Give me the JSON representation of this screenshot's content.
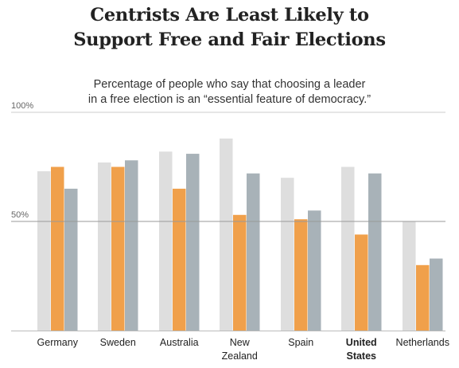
{
  "title_lines": [
    "Centrists Are Least Likely to",
    "Support Free and Fair Elections"
  ],
  "subtitle_lines": [
    "Percentage of people who say that choosing a leader",
    "in a free election is an “essential feature of democracy.”"
  ],
  "colors": {
    "series_1": "#dedede",
    "series_2": "#f0a04b",
    "series_3": "#a8b2b8",
    "gridline": "#cccccc",
    "midline": "#999999",
    "baseline": "#bbbbbb"
  },
  "chart_data": {
    "type": "bar",
    "title": "Centrists Are Least Likely to Support Free and Fair Elections",
    "subtitle": "Percentage of people who say that choosing a leader in a free election is an “essential feature of democracy.”",
    "categories": [
      {
        "lines": [
          "Germany"
        ],
        "bold": false
      },
      {
        "lines": [
          "Sweden"
        ],
        "bold": false
      },
      {
        "lines": [
          "Australia"
        ],
        "bold": false
      },
      {
        "lines": [
          "New",
          "Zealand"
        ],
        "bold": false
      },
      {
        "lines": [
          "Spain"
        ],
        "bold": false
      },
      {
        "lines": [
          "United",
          "States"
        ],
        "bold": true
      },
      {
        "lines": [
          "Netherlands"
        ],
        "bold": false
      }
    ],
    "series": [
      {
        "values": [
          73,
          77,
          82,
          88,
          70,
          75,
          50
        ]
      },
      {
        "values": [
          75,
          75,
          65,
          53,
          51,
          44,
          30
        ]
      },
      {
        "values": [
          65,
          78,
          81,
          72,
          55,
          72,
          33
        ]
      }
    ],
    "ylim": [
      0,
      100
    ],
    "yticks": [
      {
        "value": 100,
        "label": "100%"
      },
      {
        "value": 50,
        "label": "50%"
      }
    ],
    "grid": true
  }
}
